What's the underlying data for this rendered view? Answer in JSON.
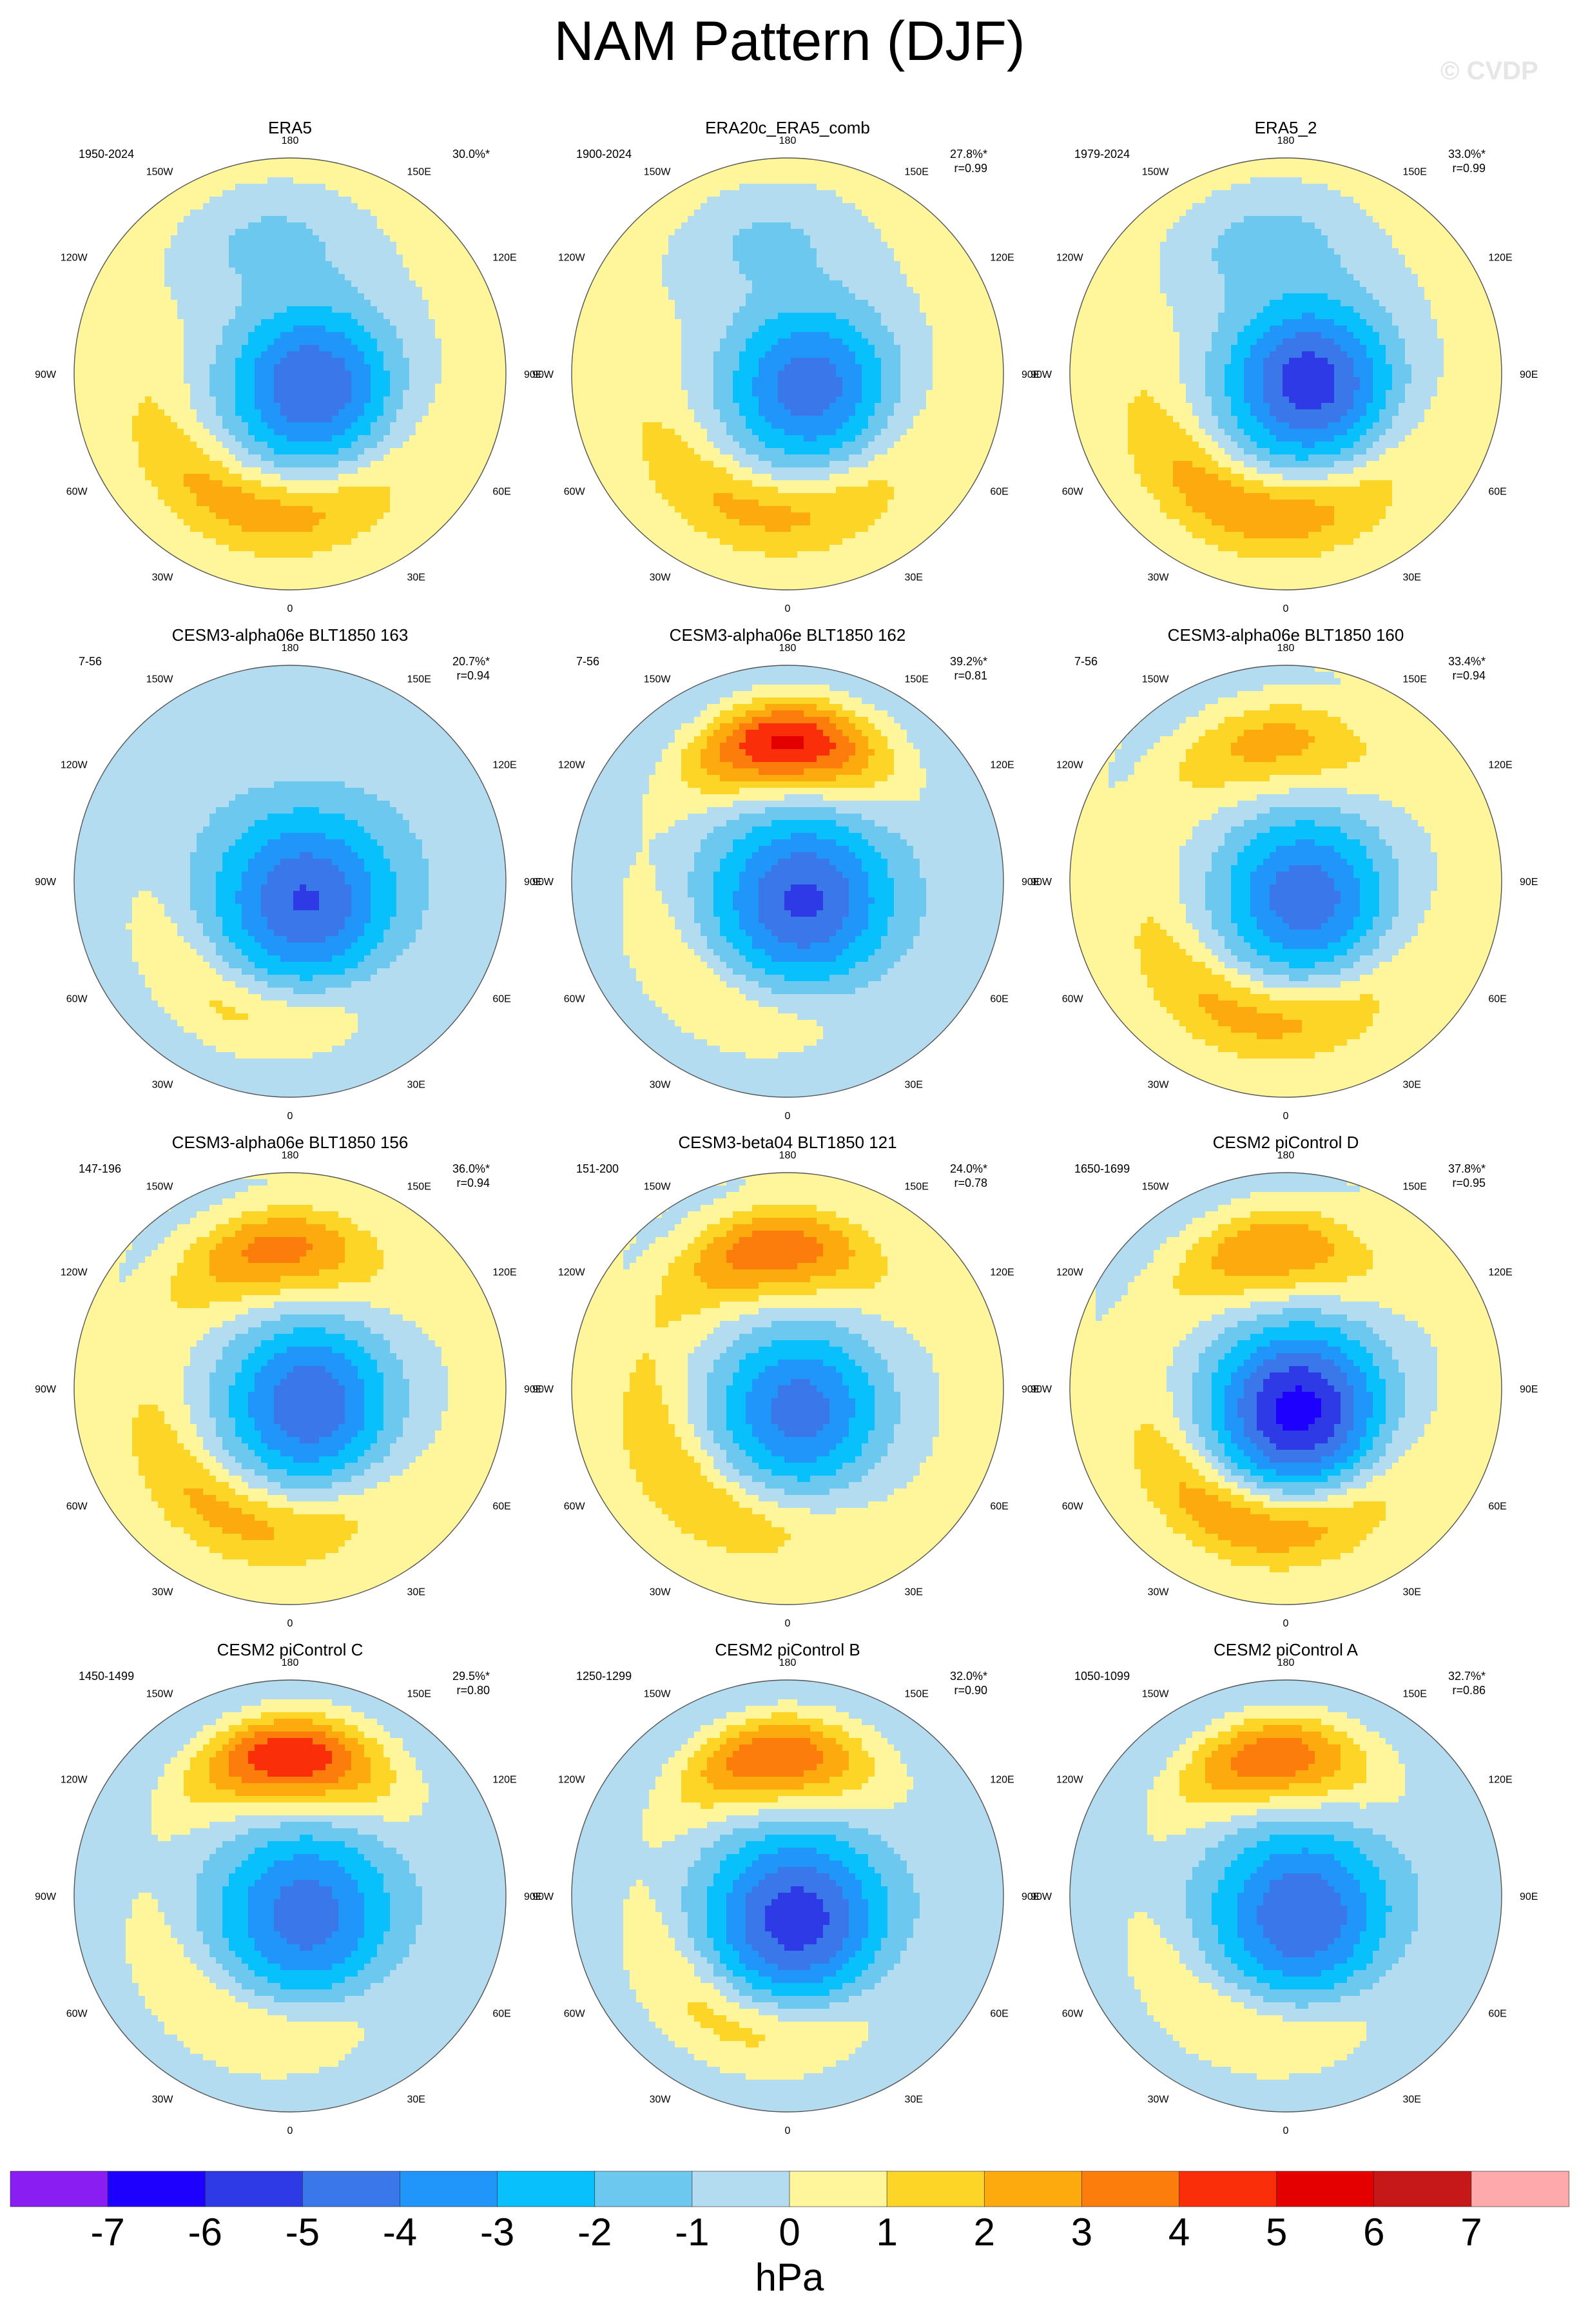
{
  "title": "NAM Pattern (DJF)",
  "watermark": "© CVDP",
  "longitude_labels": [
    "180",
    "150E",
    "120E",
    "90E",
    "60E",
    "30E",
    "0",
    "30W",
    "60W",
    "90W",
    "120W",
    "150W"
  ],
  "panels": [
    {
      "title": "ERA5",
      "years": "1950-2024",
      "pct": "30.0%*",
      "r": "",
      "pattern": {
        "pacific": -1.5,
        "pacific_lon": 190,
        "atlantic": 2.6,
        "atlantic_lon": -10,
        "arctic": -5.4,
        "arctic_lon": 60,
        "background": 0.4,
        "pacific_ring": false
      }
    },
    {
      "title": "ERA20c_ERA5_comb",
      "years": "1900-2024",
      "pct": "27.8%*",
      "r": "r=0.99",
      "pattern": {
        "pacific": -1.4,
        "pacific_lon": 190,
        "atlantic": 2.3,
        "atlantic_lon": -5,
        "arctic": -5.0,
        "arctic_lon": 60,
        "background": 0.4,
        "pacific_ring": false
      }
    },
    {
      "title": "ERA5_2",
      "years": "1979-2024",
      "pct": "33.0%*",
      "r": "r=0.99",
      "pattern": {
        "pacific": -1.6,
        "pacific_lon": 190,
        "atlantic": 2.9,
        "atlantic_lon": -10,
        "arctic": -6.0,
        "arctic_lon": 70,
        "background": 0.4,
        "pacific_ring": false
      }
    },
    {
      "title": "CESM3-alpha06e BLT1850 163",
      "years": "7-56",
      "pct": "20.7%*",
      "r": "r=0.94",
      "pattern": {
        "pacific": 0.4,
        "pacific_lon": 180,
        "atlantic": 2.0,
        "atlantic_lon": -20,
        "arctic": -4.6,
        "arctic_lon": 40,
        "background": -0.5,
        "pacific_ring": false
      }
    },
    {
      "title": "CESM3-alpha06e BLT1850 162",
      "years": "7-56",
      "pct": "39.2%*",
      "r": "r=0.81",
      "pattern": {
        "pacific": 5.8,
        "pacific_lon": 180,
        "atlantic": 1.6,
        "atlantic_lon": -30,
        "arctic": -4.8,
        "arctic_lon": 40,
        "background": -0.4,
        "pacific_ring": true
      }
    },
    {
      "title": "CESM3-alpha06e BLT1850 160",
      "years": "7-56",
      "pct": "33.4%*",
      "r": "r=0.94",
      "pattern": {
        "pacific": 2.3,
        "pacific_lon": 185,
        "atlantic": 2.5,
        "atlantic_lon": -10,
        "arctic": -5.0,
        "arctic_lon": 50,
        "background": 0.3,
        "pacific_ring": true
      }
    },
    {
      "title": "CESM3-alpha06e BLT1850 156",
      "years": "147-196",
      "pct": "36.0%*",
      "r": "r=0.94",
      "pattern": {
        "pacific": 3.3,
        "pacific_lon": 185,
        "atlantic": 2.4,
        "atlantic_lon": -20,
        "arctic": -5.2,
        "arctic_lon": 50,
        "background": 0.3,
        "pacific_ring": true
      }
    },
    {
      "title": "CESM3-beta04 BLT1850 121",
      "years": "151-200",
      "pct": "24.0%*",
      "r": "r=0.78",
      "pattern": {
        "pacific": 3.6,
        "pacific_lon": 185,
        "atlantic": 2.0,
        "atlantic_lon": -40,
        "arctic": -4.8,
        "arctic_lon": 30,
        "background": 0.3,
        "pacific_ring": true
      }
    },
    {
      "title": "CESM2 piControl D",
      "years": "1650-1699",
      "pct": "37.8%*",
      "r": "r=0.95",
      "pattern": {
        "pacific": 3.0,
        "pacific_lon": 185,
        "atlantic": 3.3,
        "atlantic_lon": -10,
        "arctic": -6.6,
        "arctic_lon": 30,
        "background": 0.2,
        "pacific_ring": true
      }
    },
    {
      "title": "CESM2 piControl C",
      "years": "1450-1499",
      "pct": "29.5%*",
      "r": "r=0.80",
      "pattern": {
        "pacific": 5.5,
        "pacific_lon": 180,
        "atlantic": 1.8,
        "atlantic_lon": -20,
        "arctic": -4.2,
        "arctic_lon": 40,
        "background": -0.4,
        "pacific_ring": true
      }
    },
    {
      "title": "CESM2 piControl B",
      "years": "1250-1299",
      "pct": "32.0%*",
      "r": "r=0.90",
      "pattern": {
        "pacific": 4.6,
        "pacific_lon": 185,
        "atlantic": 2.2,
        "atlantic_lon": -20,
        "arctic": -5.2,
        "arctic_lon": 20,
        "background": -0.4,
        "pacific_ring": true
      }
    },
    {
      "title": "CESM2 piControl A",
      "years": "1050-1099",
      "pct": "32.7%*",
      "r": "r=0.86",
      "pattern": {
        "pacific": 4.4,
        "pacific_lon": 185,
        "atlantic": 1.8,
        "atlantic_lon": -15,
        "arctic": -4.6,
        "arctic_lon": 40,
        "background": -0.4,
        "pacific_ring": true
      }
    }
  ],
  "colorbar": {
    "labels": [
      "-7",
      "-6",
      "-5",
      "-4",
      "-3",
      "-2",
      "-1",
      "0",
      "1",
      "2",
      "3",
      "4",
      "5",
      "6",
      "7"
    ],
    "colors": [
      "#8a1ef2",
      "#1e00ff",
      "#2d3ae6",
      "#3a78e9",
      "#2095fa",
      "#08c0fb",
      "#6dc8f0",
      "#b4dcf0",
      "#fff59a",
      "#fcd527",
      "#fdaa0e",
      "#fc7d0c",
      "#fb2e0a",
      "#e50000",
      "#c61818",
      "#feaaaa"
    ],
    "units": "hPa"
  }
}
